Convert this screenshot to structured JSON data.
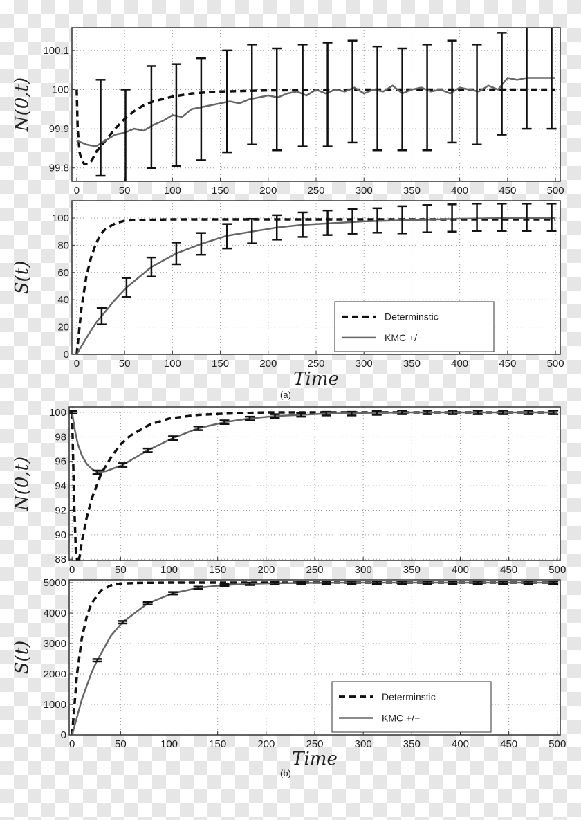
{
  "captions": {
    "a": "(a)",
    "b": "(b)"
  },
  "legend": {
    "deterministic": "Determinstic",
    "kmc": "KMC +/−"
  },
  "colors": {
    "deterministic": "#111111",
    "kmc": "#666666",
    "errorbar": "#111111"
  },
  "chart_data": [
    {
      "id": "a-N",
      "type": "line",
      "title": "",
      "ylabel": "N(0,t)",
      "xlabel": "",
      "xlim": [
        -5,
        505
      ],
      "ylim": [
        99.766,
        100.158
      ],
      "xticks": [
        0,
        50,
        100,
        150,
        200,
        250,
        300,
        350,
        400,
        450,
        500
      ],
      "yticks": [
        99.8,
        99.9,
        100,
        100.1
      ],
      "ytick_labels": [
        "99.8",
        "99.9",
        "100",
        "100.1"
      ],
      "grid": true,
      "series": [
        {
          "name": "Determinstic",
          "style": "dashed",
          "x": [
            0,
            1,
            3,
            5,
            8,
            12,
            16,
            20,
            30,
            40,
            50,
            60,
            70,
            80,
            100,
            120,
            150,
            200,
            300,
            500
          ],
          "y": [
            100,
            99.9,
            99.84,
            99.82,
            99.81,
            99.81,
            99.82,
            99.84,
            99.87,
            99.9,
            99.925,
            99.945,
            99.96,
            99.97,
            99.982,
            99.99,
            99.995,
            99.998,
            100,
            100
          ]
        },
        {
          "name": "KMC +/−",
          "style": "solid",
          "x": [
            0,
            10,
            20,
            30,
            40,
            50,
            60,
            70,
            80,
            90,
            100,
            110,
            120,
            130,
            140,
            150,
            160,
            170,
            180,
            190,
            200,
            210,
            220,
            230,
            240,
            250,
            260,
            270,
            280,
            290,
            300,
            310,
            320,
            330,
            340,
            350,
            360,
            370,
            380,
            390,
            400,
            410,
            420,
            430,
            440,
            450,
            460,
            470,
            480,
            490,
            500
          ],
          "y": [
            99.87,
            99.86,
            99.855,
            99.87,
            99.885,
            99.89,
            99.9,
            99.895,
            99.91,
            99.92,
            99.935,
            99.93,
            99.95,
            99.955,
            99.96,
            99.965,
            99.97,
            99.965,
            99.975,
            99.98,
            99.985,
            99.98,
            99.99,
            99.995,
            99.985,
            100.0,
            99.99,
            100.0,
            99.995,
            100.005,
            99.99,
            100.0,
            99.995,
            100.01,
            99.99,
            100.0,
            100.005,
            99.995,
            100.0,
            99.99,
            100.005,
            100.0,
            99.995,
            100.01,
            100.0,
            100.03,
            100.025,
            100.03,
            100.03,
            100.03,
            100.03
          ]
        }
      ],
      "errorbars": {
        "t": [
          25,
          51,
          78,
          104,
          130,
          157,
          183,
          209,
          236,
          262,
          288,
          314,
          340,
          366,
          392,
          418,
          444,
          470,
          496
        ],
        "center": [
          99.9025,
          99.8825,
          99.93,
          99.935,
          99.95,
          99.97,
          99.9875,
          99.975,
          99.985,
          99.9875,
          99.995,
          99.9775,
          99.975,
          99.98,
          99.995,
          99.9875,
          100.015,
          100.03,
          100.03
        ],
        "err": [
          0.1225,
          0.1175,
          0.13,
          0.13,
          0.13,
          0.13,
          0.1275,
          0.13,
          0.13,
          0.1325,
          0.13,
          0.1325,
          0.13,
          0.135,
          0.13,
          0.1275,
          0.13,
          0.13,
          0.13
        ]
      }
    },
    {
      "id": "a-S",
      "type": "line",
      "ylabel": "S(t)",
      "xlabel": "Time",
      "xlim": [
        -5,
        505
      ],
      "ylim": [
        0,
        112.7
      ],
      "xticks": [
        0,
        50,
        100,
        150,
        200,
        250,
        300,
        350,
        400,
        450,
        500
      ],
      "yticks": [
        0,
        20,
        40,
        60,
        80,
        100
      ],
      "ytick_labels": [
        "0",
        "20",
        "40",
        "60",
        "80",
        "100"
      ],
      "grid": true,
      "legend": "bottom-right",
      "series": [
        {
          "name": "Determinstic",
          "style": "dashed",
          "x": [
            0,
            5,
            10,
            15,
            20,
            25,
            30,
            40,
            50,
            60,
            100,
            500
          ],
          "y": [
            0,
            34,
            57,
            71,
            81,
            88,
            92,
            96,
            98,
            98.5,
            99,
            99
          ]
        },
        {
          "name": "KMC +/−",
          "style": "solid",
          "x": [
            0,
            10,
            20,
            26,
            40,
            52,
            78,
            104,
            130,
            157,
            183,
            209,
            236,
            262,
            300,
            350,
            400,
            450,
            500
          ],
          "y": [
            0,
            12,
            23,
            28,
            40,
            49,
            64,
            74,
            81,
            87,
            90,
            93,
            95,
            96,
            97.5,
            98.5,
            99.5,
            100,
            100
          ]
        }
      ],
      "errorbars": {
        "t": [
          26,
          52,
          78,
          104,
          130,
          157,
          183,
          209,
          236,
          262,
          288,
          314,
          340,
          366,
          392,
          418,
          444,
          470,
          496
        ],
        "center": [
          28,
          49,
          64,
          74,
          81,
          86.6,
          90.4,
          93.1,
          95.1,
          96.5,
          97.5,
          98.2,
          98.7,
          99.5,
          100,
          100.5,
          100.5,
          100.5,
          100.5
        ],
        "err": [
          6,
          7,
          7,
          8,
          8,
          9,
          9,
          9,
          9,
          9,
          9,
          9,
          10,
          10,
          10,
          10,
          10,
          10,
          10
        ]
      }
    },
    {
      "id": "b-N",
      "type": "line",
      "ylabel": "N(0,t)",
      "xlabel": "",
      "xlim": [
        -3,
        503
      ],
      "ylim": [
        87.9,
        100.45
      ],
      "xticks": [
        0,
        50,
        100,
        150,
        200,
        250,
        300,
        350,
        400,
        450,
        500
      ],
      "yticks": [
        88,
        90,
        92,
        94,
        96,
        98,
        100
      ],
      "ytick_labels": [
        "88",
        "90",
        "92",
        "94",
        "96",
        "98",
        "100"
      ],
      "grid": true,
      "series": [
        {
          "name": "Determinstic",
          "style": "dashed",
          "x": [
            0,
            2,
            4,
            6,
            8,
            10,
            15,
            20,
            30,
            40,
            50,
            60,
            80,
            100,
            130,
            160,
            200,
            300,
            500
          ],
          "y": [
            100,
            93,
            88.5,
            87.6,
            88.3,
            89.4,
            91.4,
            92.9,
            95.0,
            96.3,
            97.4,
            98.1,
            99.0,
            99.5,
            99.8,
            99.9,
            100,
            100,
            100
          ]
        },
        {
          "name": "KMC +/−",
          "style": "solid",
          "x": [
            0,
            3,
            6,
            10,
            15,
            20,
            26,
            35,
            52,
            78,
            104,
            130,
            157,
            183,
            209,
            236,
            262,
            300,
            350,
            400,
            500
          ],
          "y": [
            100,
            98.5,
            97.4,
            96.5,
            95.8,
            95.4,
            95.1,
            95.2,
            95.7,
            96.9,
            97.9,
            98.7,
            99.2,
            99.5,
            99.7,
            99.8,
            99.9,
            99.95,
            100,
            100,
            100
          ]
        }
      ],
      "errorbars": {
        "t": [
          0,
          26,
          52,
          78,
          104,
          130,
          157,
          183,
          209,
          236,
          262,
          288,
          314,
          340,
          366,
          392,
          418,
          444,
          470,
          496
        ],
        "center": [
          100,
          95.1,
          95.7,
          96.9,
          97.9,
          98.7,
          99.2,
          99.5,
          99.7,
          99.8,
          99.9,
          99.9,
          99.95,
          100,
          100,
          100,
          100,
          100,
          100,
          100
        ],
        "err": [
          0.1,
          0.15,
          0.15,
          0.15,
          0.15,
          0.15,
          0.15,
          0.15,
          0.15,
          0.15,
          0.15,
          0.15,
          0.15,
          0.15,
          0.15,
          0.15,
          0.15,
          0.15,
          0.15,
          0.15
        ]
      }
    },
    {
      "id": "b-S",
      "type": "line",
      "ylabel": "S(t)",
      "xlabel": "Time",
      "xlim": [
        -3,
        503
      ],
      "ylim": [
        0,
        5091
      ],
      "xticks": [
        0,
        50,
        100,
        150,
        200,
        250,
        300,
        350,
        400,
        450,
        500
      ],
      "yticks": [
        0,
        1000,
        2000,
        3000,
        4000,
        5000
      ],
      "ytick_labels": [
        "0",
        "1000",
        "2000",
        "3000",
        "4000",
        "5000"
      ],
      "grid": true,
      "legend": "bottom-right",
      "series": [
        {
          "name": "Determinstic",
          "style": "dashed",
          "x": [
            0,
            5,
            10,
            15,
            20,
            30,
            40,
            50,
            70,
            100,
            200,
            500
          ],
          "y": [
            0,
            1970,
            3160,
            3880,
            4320,
            4750,
            4910,
            4970,
            4990,
            5000,
            5000,
            5000
          ]
        },
        {
          "name": "KMC +/−",
          "style": "solid",
          "x": [
            0,
            10,
            20,
            26,
            40,
            52,
            78,
            104,
            130,
            157,
            183,
            209,
            262,
            300,
            400,
            500
          ],
          "y": [
            0,
            1155,
            2045,
            2450,
            3255,
            3700,
            4320,
            4650,
            4830,
            4920,
            4960,
            4980,
            4995,
            5000,
            5000,
            5000
          ]
        }
      ],
      "errorbars": {
        "t": [
          26,
          52,
          78,
          104,
          130,
          157,
          183,
          209,
          236,
          262,
          288,
          314,
          340,
          366,
          392,
          418,
          444,
          470,
          496
        ],
        "center": [
          2450,
          3700,
          4320,
          4650,
          4830,
          4920,
          4960,
          4980,
          4990,
          4995,
          5000,
          5000,
          5000,
          5000,
          5000,
          5000,
          5000,
          5000,
          5000
        ],
        "err": [
          40,
          40,
          40,
          40,
          40,
          40,
          40,
          40,
          40,
          40,
          40,
          40,
          40,
          40,
          40,
          40,
          40,
          40,
          40
        ]
      }
    }
  ]
}
